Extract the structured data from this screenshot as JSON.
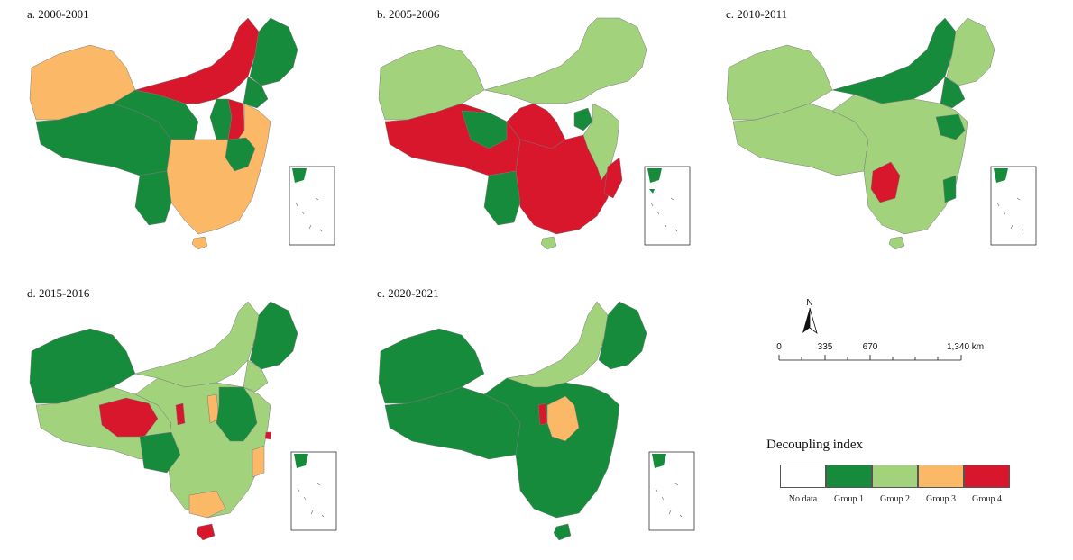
{
  "panels": [
    {
      "label": "a. 2000-2001"
    },
    {
      "label": "b. 2005-2006"
    },
    {
      "label": "c. 2010-2011"
    },
    {
      "label": "d. 2015-2016"
    },
    {
      "label": "e. 2020-2021"
    }
  ],
  "legend": {
    "title": "Decoupling index",
    "items": [
      {
        "label": "No data",
        "color": "#ffffff"
      },
      {
        "label": "Group 1",
        "color": "#178b3c"
      },
      {
        "label": "Group 2",
        "color": "#a3d27c"
      },
      {
        "label": "Group 3",
        "color": "#fbb867"
      },
      {
        "label": "Group 4",
        "color": "#d8162c"
      }
    ]
  },
  "north_arrow": {
    "label": "N"
  },
  "scale_bar": {
    "ticks": [
      "0",
      "335",
      "670",
      "1,340 km"
    ]
  }
}
